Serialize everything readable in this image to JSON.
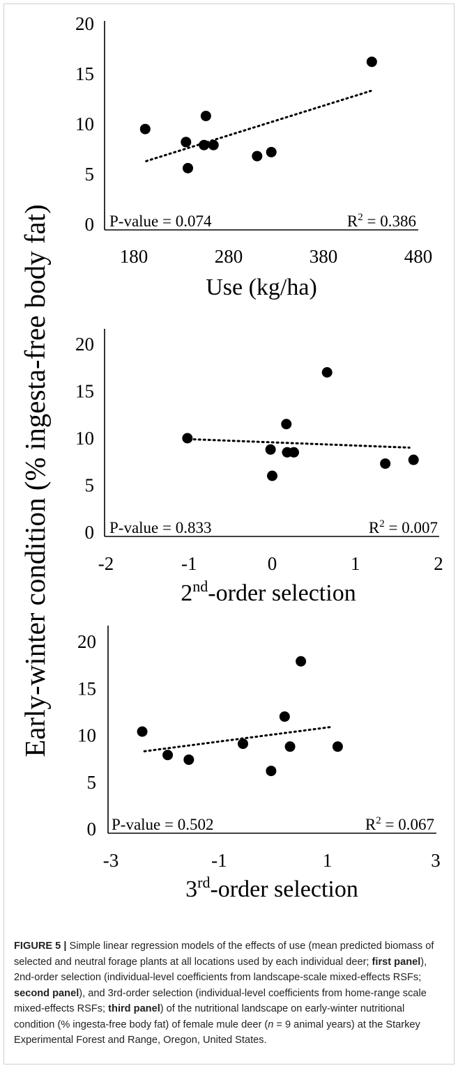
{
  "chart_data": [
    {
      "type": "scatter",
      "xlabel": "Use (kg/ha)",
      "ylabel": "Early-winter condition (% ingesta-free body fat)",
      "xlim": [
        180,
        480
      ],
      "ylim": [
        0,
        20
      ],
      "xticks": [
        "180",
        "280",
        "380",
        "480"
      ],
      "yticks": [
        "0",
        "5",
        "10",
        "15",
        "20"
      ],
      "x": [
        192,
        235,
        237,
        254,
        256,
        264,
        310,
        325,
        431
      ],
      "y": [
        9.5,
        8.2,
        5.6,
        7.9,
        10.8,
        7.9,
        6.8,
        7.2,
        16.2
      ],
      "trend": {
        "x0": 193,
        "y0": 6.3,
        "x1": 430,
        "y1": 13.3
      },
      "pvalue_label": "P-value = 0.074",
      "r2_prefix": "R",
      "r2_sup": "2",
      "r2_value": " = 0.386"
    },
    {
      "type": "scatter",
      "xlabel_sup": "nd",
      "xlabel_pre": "2",
      "xlabel_post": "-order selection",
      "xlim": [
        -2,
        2
      ],
      "ylim": [
        0,
        20
      ],
      "xticks": [
        "-2",
        "-1",
        "0",
        "1",
        "2"
      ],
      "yticks": [
        "0",
        "5",
        "10",
        "15",
        "20"
      ],
      "x": [
        -1.02,
        -0.02,
        0.0,
        0.17,
        0.18,
        0.26,
        0.66,
        1.36,
        1.7
      ],
      "y": [
        10.0,
        8.8,
        6.0,
        11.5,
        8.5,
        8.5,
        17.0,
        7.3,
        7.7
      ],
      "trend": {
        "x0": -1.0,
        "y0": 9.9,
        "x1": 1.65,
        "y1": 9.0
      },
      "pvalue_label": "P-value = 0.833",
      "r2_prefix": "R",
      "r2_sup": "2",
      "r2_value": " = 0.007"
    },
    {
      "type": "scatter",
      "xlabel_sup": "rd",
      "xlabel_pre": "3",
      "xlabel_post": "-order selection",
      "xlim": [
        -3,
        3
      ],
      "ylim": [
        0,
        20
      ],
      "xticks": [
        "-3",
        "-1",
        "1",
        "3"
      ],
      "yticks": [
        "0",
        "5",
        "10",
        "15",
        "20"
      ],
      "x": [
        -2.42,
        -1.95,
        -1.56,
        -0.56,
        -0.04,
        0.21,
        0.31,
        0.51,
        1.19
      ],
      "y": [
        10.4,
        7.9,
        7.4,
        9.1,
        6.2,
        12.0,
        8.8,
        17.9,
        8.8
      ],
      "trend": {
        "x0": -2.38,
        "y0": 8.3,
        "x1": 1.08,
        "y1": 10.9
      },
      "pvalue_label": "P-value = 0.502",
      "r2_prefix": "R",
      "r2_sup": "2",
      "r2_value": " = 0.067"
    }
  ],
  "caption": {
    "label": "FIGURE 5 |",
    "t1": " Simple linear regression models of the effects of use (mean predicted biomass of selected and neutral forage plants at all locations used by each individual deer; ",
    "b1": "first panel",
    "t2": "), 2nd-order selection (individual-level coefficients from landscape-scale mixed-effects RSFs; ",
    "b2": "second panel",
    "t3": "), and 3rd-order selection (individual-level coefficients from home-range scale mixed-effects RSFs; ",
    "b3": "third panel",
    "t4": ") of the nutritional landscape on early-winter nutritional condition (% ingesta-free body fat) of female mule deer (",
    "n_italic": "n",
    "t5": " = 9 animal years) at the Starkey Experimental Forest and Range, Oregon, United States."
  }
}
